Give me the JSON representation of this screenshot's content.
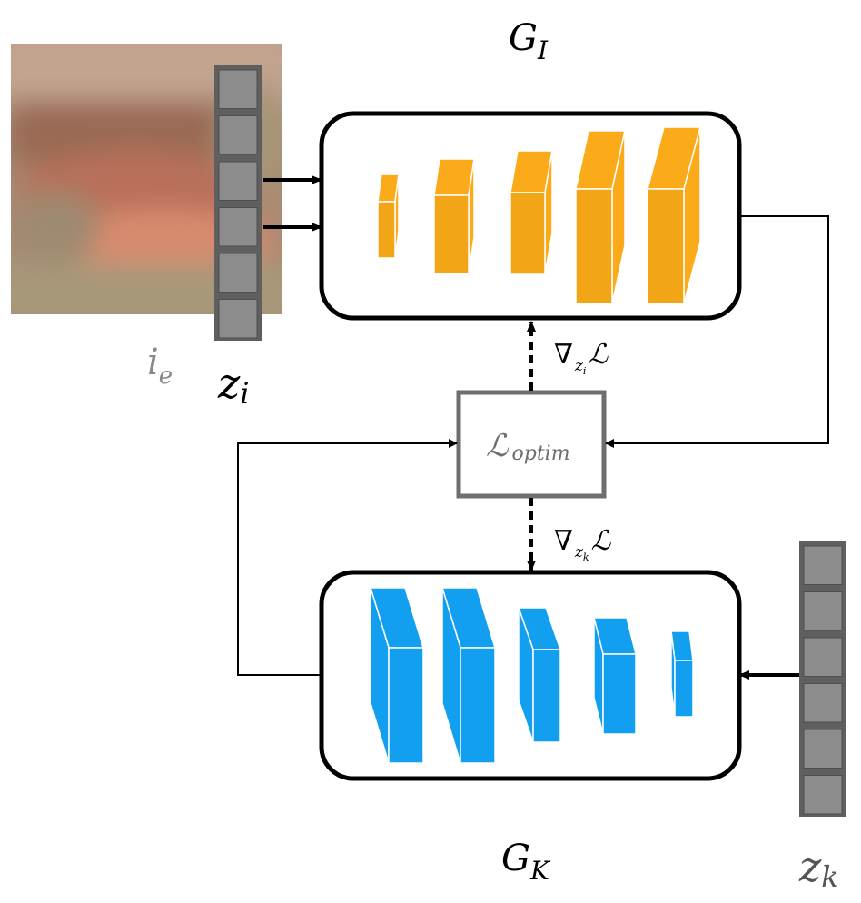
{
  "generator_image": {
    "label": "G",
    "subscript": "I"
  },
  "generator_kernel": {
    "label": "G",
    "subscript": "K"
  },
  "latent_image": {
    "label": "z",
    "subscript": "i"
  },
  "latent_kernel": {
    "label": "z",
    "subscript": "k"
  },
  "input_image": {
    "label": "i",
    "subscript": "e"
  },
  "loss": {
    "symbol": "ℒ",
    "subscript": "optim"
  },
  "grad_image": {
    "nabla": "∇",
    "var": "z",
    "var_sub": "i",
    "loss_symbol": "ℒ"
  },
  "grad_kernel": {
    "nabla": "∇",
    "var": "z",
    "var_sub": "k",
    "loss_symbol": "ℒ"
  },
  "colors": {
    "image_blocks": "#fbaa19",
    "kernel_blocks": "#129ff0",
    "latent_cells": "#8c8c8c",
    "latent_border": "#5f5f5f",
    "loss_border": "#6e6e6e",
    "label_gray": "#8a8a8a"
  }
}
